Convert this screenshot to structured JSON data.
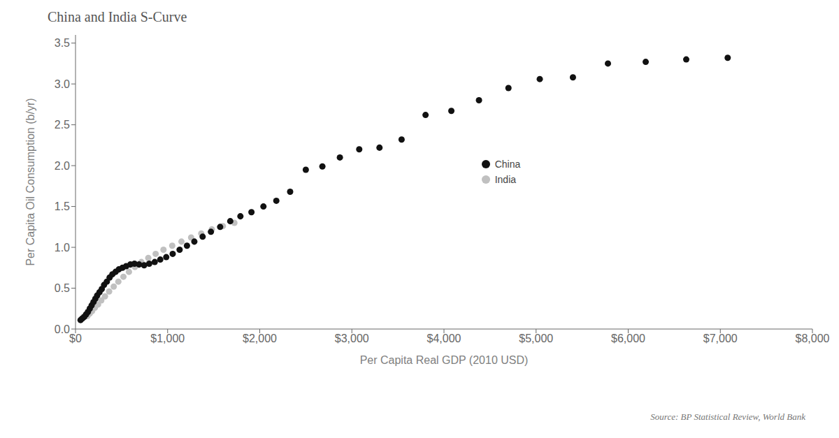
{
  "chart_data": {
    "type": "scatter",
    "title": "China and India S-Curve",
    "x_label": "Per Capita Real GDP (2010 USD)",
    "y_label": "Per Capita Oil Consumption (b/yr)",
    "annotations": [
      "Source: BP Statistical Review, World Bank"
    ],
    "series": [
      {
        "name": "China",
        "color": "#111111",
        "marker": "circle",
        "x": [
          55,
          75,
          95,
          115,
          135,
          155,
          175,
          195,
          215,
          235,
          260,
          285,
          310,
          340,
          370,
          400,
          435,
          470,
          510,
          550,
          595,
          640,
          690,
          745,
          800,
          860,
          920,
          985,
          1055,
          1130,
          1210,
          1290,
          1380,
          1470,
          1570,
          1680,
          1790,
          1910,
          2040,
          2180,
          2330,
          2500,
          2680,
          2870,
          3080,
          3300,
          3540,
          3800,
          4080,
          4380,
          4700,
          5040,
          5400,
          5780,
          6190,
          6630,
          7080
        ],
        "values": [
          0.11,
          0.13,
          0.15,
          0.18,
          0.21,
          0.25,
          0.29,
          0.33,
          0.37,
          0.41,
          0.45,
          0.49,
          0.54,
          0.58,
          0.63,
          0.67,
          0.7,
          0.73,
          0.75,
          0.77,
          0.79,
          0.8,
          0.79,
          0.78,
          0.8,
          0.82,
          0.85,
          0.88,
          0.92,
          0.97,
          1.02,
          1.07,
          1.13,
          1.19,
          1.25,
          1.32,
          1.38,
          1.43,
          1.5,
          1.57,
          1.68,
          1.95,
          1.99,
          2.1,
          2.2,
          2.22,
          2.32,
          2.62,
          2.67,
          2.8,
          2.95,
          3.06,
          3.08,
          3.25,
          3.27,
          3.3,
          3.32
        ]
      },
      {
        "name": "India",
        "color": "#c0c0c0",
        "marker": "circle",
        "x": [
          130,
          155,
          180,
          210,
          245,
          280,
          320,
          365,
          415,
          465,
          520,
          580,
          645,
          715,
          790,
          870,
          955,
          1050,
          1150,
          1255,
          1365,
          1480,
          1600,
          1725
        ],
        "values": [
          0.16,
          0.19,
          0.22,
          0.26,
          0.3,
          0.35,
          0.4,
          0.46,
          0.52,
          0.58,
          0.64,
          0.7,
          0.76,
          0.82,
          0.87,
          0.92,
          0.97,
          1.02,
          1.07,
          1.12,
          1.17,
          1.22,
          1.26,
          1.3
        ]
      }
    ],
    "xlim": [
      0,
      8000
    ],
    "ylim": [
      0,
      3.6
    ],
    "xticks": [
      {
        "value": 0,
        "label": "$0"
      },
      {
        "value": 1000,
        "label": "$1,000"
      },
      {
        "value": 2000,
        "label": "$2,000"
      },
      {
        "value": 3000,
        "label": "$3,000"
      },
      {
        "value": 4000,
        "label": "$4,000"
      },
      {
        "value": 5000,
        "label": "$5,000"
      },
      {
        "value": 6000,
        "label": "$6,000"
      },
      {
        "value": 7000,
        "label": "$7,000"
      },
      {
        "value": 8000,
        "label": "$8,000"
      }
    ],
    "yticks": [
      {
        "value": 0,
        "label": "0.0"
      },
      0.5,
      {
        "value": 1,
        "label": "1.0"
      },
      1.5,
      {
        "value": 2,
        "label": "2.0"
      },
      2.5,
      {
        "value": 3,
        "label": "3.0"
      },
      3.5
    ],
    "grid": false,
    "legend": "center"
  }
}
